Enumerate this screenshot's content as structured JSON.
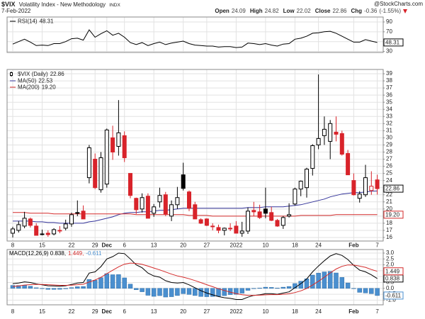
{
  "header": {
    "symbol": "$VIX",
    "name": "Volatility Index - New Methodology",
    "exchange": "INDX",
    "date": "7-Feb-2022",
    "source": "@StockCharts.com",
    "quote": [
      {
        "label": "Open",
        "value": 24.09
      },
      {
        "label": "High",
        "value": 24.82
      },
      {
        "label": "Low",
        "value": 22.02
      },
      {
        "label": "Close",
        "value": 22.86
      },
      {
        "label": "Chg",
        "value": -0.36
      }
    ],
    "change_pct": {
      "value": -1.55,
      "label": "(-1.55%)"
    }
  },
  "chart_data": [
    {
      "type": "line",
      "name": "RSI(14)",
      "color": "#000000",
      "values": [
        45,
        50,
        55,
        49,
        42,
        43,
        42,
        46,
        46,
        50,
        56,
        57,
        53,
        74,
        59,
        66,
        72,
        63,
        67,
        59,
        48,
        44,
        48,
        42,
        46,
        49,
        44,
        47,
        49,
        51,
        46,
        43,
        42,
        41,
        41,
        39,
        40,
        40,
        38,
        39,
        47,
        46,
        44,
        46,
        43,
        41,
        45,
        46,
        55,
        57,
        61,
        67,
        68,
        70,
        71,
        67,
        61,
        55,
        49,
        49,
        54,
        51,
        48.31
      ],
      "ylim": [
        28,
        100
      ],
      "yticks": [
        30,
        50,
        70,
        90
      ],
      "grid": true
    },
    {
      "type": "candlestick",
      "name": "$VIX (Daily)",
      "categories": [
        "8",
        null,
        null,
        null,
        null,
        "15",
        null,
        null,
        null,
        null,
        "22",
        null,
        null,
        null,
        "29",
        null,
        "Dec",
        null,
        null,
        "6",
        null,
        null,
        null,
        null,
        "13",
        null,
        null,
        null,
        null,
        "20",
        null,
        null,
        null,
        "27",
        null,
        null,
        null,
        null,
        "2022",
        null,
        null,
        null,
        null,
        "10",
        null,
        null,
        null,
        null,
        "18",
        null,
        null,
        null,
        "24",
        null,
        null,
        null,
        null,
        null,
        "Feb",
        null,
        null,
        null,
        "7"
      ],
      "open": [
        16.6,
        17.0,
        17.6,
        18.6,
        17.6,
        16.5,
        16.6,
        16.5,
        17.0,
        17.3,
        17.9,
        19.5,
        19.7,
        24.4,
        27.0,
        22.7,
        23.5,
        30.0,
        28.8,
        30.3,
        25.0,
        21.5,
        20.0,
        21.8,
        19.4,
        21.0,
        22.0,
        19.0,
        20.6,
        24.8,
        22.4,
        20.6,
        18.5,
        18.6,
        17.6,
        17.4,
        17.0,
        17.3,
        17.6,
        16.6,
        16.9,
        19.8,
        19.6,
        20.0,
        19.5,
        18.4,
        17.7,
        19.0,
        20.7,
        22.8,
        23.0,
        25.7,
        29.0,
        30.3,
        29.5,
        30.8,
        30.6,
        27.8,
        24.0,
        21.5,
        22.0,
        22.6,
        24.09
      ],
      "high": [
        17.5,
        18.3,
        19.6,
        18.8,
        18.0,
        17.1,
        17.0,
        17.3,
        17.6,
        18.5,
        19.5,
        21.2,
        20.5,
        29.0,
        27.8,
        28.0,
        31.3,
        31.7,
        35.3,
        30.9,
        25.0,
        21.6,
        22.2,
        22.2,
        20.7,
        23.0,
        22.4,
        21.2,
        23.1,
        26.5,
        22.6,
        21.0,
        18.7,
        18.7,
        18.0,
        17.8,
        17.4,
        18.0,
        18.3,
        18.2,
        20.2,
        21.0,
        20.6,
        23.0,
        20.3,
        18.6,
        19.0,
        20.8,
        23.0,
        24.0,
        25.8,
        29.1,
        38.9,
        33.0,
        32.5,
        33.0,
        31.0,
        28.3,
        25.0,
        22.5,
        26.2,
        25.3,
        24.82
      ],
      "low": [
        16.0,
        16.7,
        17.3,
        17.4,
        16.3,
        16.3,
        16.1,
        16.3,
        16.6,
        17.0,
        17.5,
        19.0,
        18.6,
        23.6,
        22.8,
        22.3,
        23.0,
        26.9,
        27.5,
        26.6,
        21.5,
        19.3,
        19.5,
        18.7,
        18.9,
        20.2,
        19.0,
        18.3,
        20.0,
        22.6,
        19.7,
        18.6,
        17.9,
        17.6,
        17.0,
        16.6,
        16.3,
        16.9,
        16.6,
        16.1,
        16.5,
        19.0,
        18.6,
        18.7,
        18.3,
        17.5,
        17.2,
        18.8,
        20.5,
        21.8,
        21.6,
        24.7,
        28.4,
        29.0,
        27.0,
        29.5,
        27.5,
        24.8,
        21.9,
        20.9,
        21.7,
        22.0,
        22.02
      ],
      "close": [
        17.2,
        17.8,
        18.7,
        17.7,
        16.3,
        16.5,
        16.4,
        17.1,
        17.0,
        17.9,
        19.2,
        19.4,
        18.6,
        28.6,
        23.0,
        27.2,
        31.1,
        28.0,
        30.7,
        27.2,
        21.9,
        19.9,
        21.6,
        18.7,
        20.3,
        21.9,
        19.3,
        20.6,
        21.6,
        22.9,
        20.1,
        18.6,
        18.0,
        17.7,
        17.5,
        17.0,
        17.3,
        17.2,
        16.6,
        16.9,
        19.7,
        19.6,
        18.8,
        19.4,
        18.4,
        17.6,
        18.8,
        19.2,
        22.8,
        23.9,
        25.6,
        28.9,
        29.9,
        31.2,
        32.0,
        30.5,
        27.7,
        24.8,
        22.0,
        22.1,
        24.4,
        23.2,
        22.86
      ],
      "up_color": "#000000",
      "down_color": "#d8232a",
      "series": [
        {
          "name": "MA(50)",
          "color": "#33339a",
          "tag": false,
          "values": [
            18.3,
            18.3,
            18.3,
            18.3,
            18.2,
            18.2,
            18.1,
            18.1,
            18.0,
            18.0,
            18.0,
            18.0,
            18.0,
            18.2,
            18.3,
            18.5,
            18.7,
            18.9,
            19.2,
            19.4,
            19.5,
            19.5,
            19.6,
            19.6,
            19.7,
            19.8,
            19.8,
            19.9,
            20.0,
            20.1,
            20.1,
            20.1,
            20.1,
            20.1,
            20.1,
            20.1,
            20.1,
            20.1,
            20.1,
            20.1,
            20.2,
            20.2,
            20.2,
            20.3,
            20.3,
            20.3,
            20.3,
            20.4,
            20.5,
            20.6,
            20.8,
            21.0,
            21.2,
            21.4,
            21.7,
            21.9,
            22.1,
            22.2,
            22.3,
            22.3,
            22.4,
            22.5,
            22.53
          ]
        },
        {
          "name": "MA(200)",
          "color": "#d42a2a",
          "tag": true,
          "values": [
            19.5,
            19.5,
            19.5,
            19.4,
            19.4,
            19.4,
            19.4,
            19.3,
            19.3,
            19.3,
            19.3,
            19.3,
            19.3,
            19.3,
            19.3,
            19.3,
            19.3,
            19.3,
            19.3,
            19.3,
            19.3,
            19.2,
            19.2,
            19.2,
            19.2,
            19.2,
            19.2,
            19.2,
            19.2,
            19.2,
            19.1,
            19.1,
            19.1,
            19.1,
            19.0,
            19.0,
            19.0,
            19.0,
            19.0,
            19.0,
            19.0,
            19.0,
            19.0,
            19.0,
            19.0,
            19.0,
            19.0,
            19.0,
            19.0,
            19.1,
            19.1,
            19.1,
            19.1,
            19.1,
            19.1,
            19.2,
            19.2,
            19.2,
            19.2,
            19.2,
            19.2,
            19.2,
            19.2
          ],
          "value_labels": [
            null,
            null,
            null,
            null,
            null,
            null,
            null,
            null,
            null,
            null,
            null,
            null,
            null,
            null,
            null,
            null,
            null,
            null,
            null,
            null,
            null,
            null,
            null,
            null,
            null,
            null,
            null,
            null,
            null,
            null,
            null,
            null,
            null,
            null,
            null,
            null,
            null,
            null,
            null,
            null,
            null,
            null,
            null,
            null,
            null,
            null,
            null,
            null,
            null,
            null,
            null,
            null,
            null,
            null,
            null,
            null,
            null,
            null,
            null,
            null,
            null,
            null,
            "19.20"
          ]
        }
      ],
      "ylim": [
        15.5,
        39.6
      ],
      "yticks": [
        16,
        17,
        18,
        19,
        20,
        21,
        22,
        23,
        24,
        25,
        26,
        27,
        28,
        29,
        30,
        31,
        32,
        33,
        34,
        35,
        36,
        37,
        38,
        39
      ],
      "grid": true
    },
    {
      "type": "macd",
      "legend": [
        "MACD(12,26,9) 0.838,",
        "1.449,",
        "-0.611"
      ],
      "series": [
        {
          "color": "#000000",
          "values": [
            0.4,
            0.45,
            0.55,
            0.5,
            0.38,
            0.3,
            0.22,
            0.2,
            0.18,
            0.22,
            0.33,
            0.45,
            0.5,
            1.3,
            1.4,
            1.85,
            2.5,
            2.7,
            3.0,
            2.95,
            2.5,
            2.0,
            1.75,
            1.3,
            1.05,
            0.95,
            0.65,
            0.5,
            0.45,
            0.5,
            0.3,
            0.05,
            -0.2,
            -0.4,
            -0.55,
            -0.7,
            -0.8,
            -0.85,
            -0.95,
            -0.95,
            -0.75,
            -0.6,
            -0.55,
            -0.45,
            -0.45,
            -0.5,
            -0.4,
            -0.3,
            0.05,
            0.4,
            0.8,
            1.4,
            1.9,
            2.35,
            2.75,
            2.95,
            2.8,
            2.45,
            1.95,
            1.55,
            1.4,
            1.15,
            0.838
          ]
        },
        {
          "color": "#d42a2a",
          "values": [
            0.15,
            0.21,
            0.28,
            0.32,
            0.33,
            0.33,
            0.31,
            0.29,
            0.26,
            0.26,
            0.27,
            0.31,
            0.35,
            0.54,
            0.71,
            0.94,
            1.25,
            1.54,
            1.83,
            2.06,
            2.15,
            2.12,
            2.04,
            1.89,
            1.73,
            1.57,
            1.39,
            1.21,
            1.06,
            0.95,
            0.82,
            0.66,
            0.49,
            0.31,
            0.14,
            -0.03,
            -0.18,
            -0.32,
            -0.44,
            -0.54,
            -0.59,
            -0.59,
            -0.58,
            -0.55,
            -0.53,
            -0.53,
            -0.5,
            -0.46,
            -0.36,
            -0.21,
            -0.01,
            0.28,
            0.6,
            0.95,
            1.31,
            1.64,
            1.87,
            1.99,
            1.98,
            1.89,
            1.79,
            1.6,
            1.449
          ]
        },
        {
          "type": "bar",
          "color": "#4a8fcf",
          "values": [
            0.25,
            0.24,
            0.27,
            0.18,
            0.05,
            -0.03,
            -0.09,
            -0.09,
            -0.08,
            -0.04,
            0.06,
            0.14,
            0.16,
            0.76,
            0.69,
            0.91,
            1.25,
            1.16,
            1.17,
            0.89,
            0.36,
            -0.12,
            -0.29,
            -0.59,
            -0.68,
            -0.62,
            -0.74,
            -0.71,
            -0.61,
            -0.45,
            -0.52,
            -0.61,
            -0.69,
            -0.71,
            -0.69,
            -0.67,
            -0.62,
            -0.53,
            -0.51,
            -0.41,
            -0.17,
            -0.01,
            0.03,
            0.1,
            0.08,
            0.03,
            0.1,
            0.16,
            0.41,
            0.61,
            0.81,
            1.13,
            1.3,
            1.4,
            1.44,
            1.31,
            0.93,
            0.46,
            -0.03,
            -0.34,
            -0.39,
            -0.45,
            -0.611
          ]
        }
      ],
      "ylim": [
        -1.4,
        3.3
      ],
      "yticks": [
        {
          "value": 3,
          "label": "3.0"
        },
        2.5,
        {
          "value": 2,
          "label": "2.0"
        },
        1.5,
        {
          "value": 1,
          "label": "1.0"
        },
        0.5,
        {
          "value": 0,
          "label": "0.0"
        },
        -0.5,
        {
          "value": -1,
          "label": "-1.0"
        }
      ],
      "grid": true
    }
  ]
}
